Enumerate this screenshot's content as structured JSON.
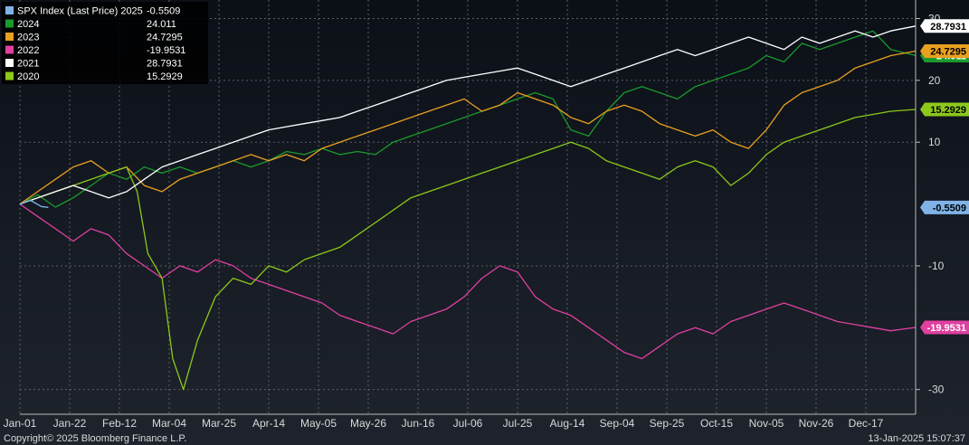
{
  "chart_data": {
    "type": "line",
    "x_tick_labels": [
      "Jan-01",
      "Jan-22",
      "Feb-12",
      "Mar-04",
      "Mar-25",
      "Apr-14",
      "May-05",
      "May-26",
      "Jun-16",
      "Jul-06",
      "Jul-25",
      "Aug-14",
      "Sep-04",
      "Sep-25",
      "Oct-15",
      "Nov-05",
      "Nov-26",
      "Dec-17"
    ],
    "y_ticks": [
      30,
      20,
      10,
      -10,
      -30
    ],
    "y_tick_labels": [
      "30",
      "20",
      "10",
      "-10",
      "-30"
    ],
    "ylim": [
      -34,
      33
    ],
    "xlim": [
      0,
      252
    ],
    "grid": true,
    "legend_position": "top-left",
    "series": [
      {
        "name": "SPX Index (Last Price) 2025",
        "last_value": "-0.5509",
        "color": "#7fb3e8",
        "points": [
          [
            0,
            0
          ],
          [
            3,
            0.6
          ],
          [
            6,
            -0.4
          ],
          [
            8,
            -0.55
          ]
        ]
      },
      {
        "name": "2024",
        "last_value": "24.011",
        "color": "#1a9a2c",
        "points": [
          [
            0,
            0
          ],
          [
            5,
            1.5
          ],
          [
            10,
            -0.5
          ],
          [
            15,
            1
          ],
          [
            20,
            3
          ],
          [
            25,
            5
          ],
          [
            30,
            4
          ],
          [
            35,
            6
          ],
          [
            40,
            5
          ],
          [
            45,
            6
          ],
          [
            50,
            5
          ],
          [
            55,
            6
          ],
          [
            60,
            7
          ],
          [
            65,
            6
          ],
          [
            70,
            7
          ],
          [
            75,
            8.5
          ],
          [
            80,
            8
          ],
          [
            85,
            9
          ],
          [
            90,
            8
          ],
          [
            95,
            8.5
          ],
          [
            100,
            8
          ],
          [
            105,
            10
          ],
          [
            110,
            11
          ],
          [
            115,
            12
          ],
          [
            120,
            13
          ],
          [
            125,
            14
          ],
          [
            130,
            15
          ],
          [
            135,
            16
          ],
          [
            140,
            17
          ],
          [
            145,
            18
          ],
          [
            150,
            17
          ],
          [
            155,
            12
          ],
          [
            160,
            11
          ],
          [
            165,
            15
          ],
          [
            170,
            18
          ],
          [
            175,
            19
          ],
          [
            180,
            18
          ],
          [
            185,
            17
          ],
          [
            190,
            19
          ],
          [
            195,
            20
          ],
          [
            200,
            21
          ],
          [
            205,
            22
          ],
          [
            210,
            24
          ],
          [
            215,
            23
          ],
          [
            220,
            26
          ],
          [
            225,
            25
          ],
          [
            230,
            26
          ],
          [
            235,
            27
          ],
          [
            240,
            28
          ],
          [
            245,
            25
          ],
          [
            252,
            24.011
          ]
        ]
      },
      {
        "name": "2023",
        "last_value": "24.7295",
        "color": "#e8a020",
        "points": [
          [
            0,
            0
          ],
          [
            5,
            2
          ],
          [
            10,
            4
          ],
          [
            15,
            6
          ],
          [
            20,
            7
          ],
          [
            25,
            5
          ],
          [
            30,
            6
          ],
          [
            35,
            3
          ],
          [
            40,
            2
          ],
          [
            45,
            4
          ],
          [
            50,
            5
          ],
          [
            55,
            6
          ],
          [
            60,
            7
          ],
          [
            65,
            8
          ],
          [
            70,
            7
          ],
          [
            75,
            8
          ],
          [
            80,
            7
          ],
          [
            85,
            9
          ],
          [
            90,
            10
          ],
          [
            95,
            11
          ],
          [
            100,
            12
          ],
          [
            105,
            13
          ],
          [
            110,
            14
          ],
          [
            115,
            15
          ],
          [
            120,
            16
          ],
          [
            125,
            17
          ],
          [
            130,
            15
          ],
          [
            135,
            16
          ],
          [
            140,
            18
          ],
          [
            145,
            17
          ],
          [
            150,
            16
          ],
          [
            155,
            14
          ],
          [
            160,
            13
          ],
          [
            165,
            15
          ],
          [
            170,
            16
          ],
          [
            175,
            15
          ],
          [
            180,
            13
          ],
          [
            185,
            12
          ],
          [
            190,
            11
          ],
          [
            195,
            12
          ],
          [
            200,
            10
          ],
          [
            205,
            9
          ],
          [
            210,
            12
          ],
          [
            215,
            16
          ],
          [
            220,
            18
          ],
          [
            225,
            19
          ],
          [
            230,
            20
          ],
          [
            235,
            22
          ],
          [
            240,
            23
          ],
          [
            245,
            24
          ],
          [
            252,
            24.7295
          ]
        ]
      },
      {
        "name": "2022",
        "last_value": "-19.9531",
        "color": "#e040a0",
        "points": [
          [
            0,
            0
          ],
          [
            5,
            -2
          ],
          [
            10,
            -4
          ],
          [
            15,
            -6
          ],
          [
            20,
            -4
          ],
          [
            25,
            -5
          ],
          [
            30,
            -8
          ],
          [
            35,
            -10
          ],
          [
            40,
            -12
          ],
          [
            45,
            -10
          ],
          [
            50,
            -11
          ],
          [
            55,
            -9
          ],
          [
            60,
            -10
          ],
          [
            65,
            -12
          ],
          [
            70,
            -13
          ],
          [
            75,
            -14
          ],
          [
            80,
            -15
          ],
          [
            85,
            -16
          ],
          [
            90,
            -18
          ],
          [
            95,
            -19
          ],
          [
            100,
            -20
          ],
          [
            105,
            -21
          ],
          [
            110,
            -19
          ],
          [
            115,
            -18
          ],
          [
            120,
            -17
          ],
          [
            125,
            -15
          ],
          [
            130,
            -12
          ],
          [
            135,
            -10
          ],
          [
            140,
            -11
          ],
          [
            145,
            -15
          ],
          [
            150,
            -17
          ],
          [
            155,
            -18
          ],
          [
            160,
            -20
          ],
          [
            165,
            -22
          ],
          [
            170,
            -24
          ],
          [
            175,
            -25
          ],
          [
            180,
            -23
          ],
          [
            185,
            -21
          ],
          [
            190,
            -20
          ],
          [
            195,
            -21
          ],
          [
            200,
            -19
          ],
          [
            205,
            -18
          ],
          [
            210,
            -17
          ],
          [
            215,
            -16
          ],
          [
            220,
            -17
          ],
          [
            225,
            -18
          ],
          [
            230,
            -19
          ],
          [
            235,
            -19.5
          ],
          [
            240,
            -20
          ],
          [
            245,
            -20.5
          ],
          [
            252,
            -19.9531
          ]
        ]
      },
      {
        "name": "2021",
        "last_value": "28.7931",
        "color": "#ffffff",
        "points": [
          [
            0,
            0
          ],
          [
            5,
            1
          ],
          [
            10,
            2
          ],
          [
            15,
            3
          ],
          [
            20,
            2
          ],
          [
            25,
            1
          ],
          [
            30,
            2
          ],
          [
            35,
            4
          ],
          [
            40,
            6
          ],
          [
            45,
            7
          ],
          [
            50,
            8
          ],
          [
            55,
            9
          ],
          [
            60,
            10
          ],
          [
            65,
            11
          ],
          [
            70,
            12
          ],
          [
            75,
            12.5
          ],
          [
            80,
            13
          ],
          [
            85,
            13.5
          ],
          [
            90,
            14
          ],
          [
            95,
            15
          ],
          [
            100,
            16
          ],
          [
            105,
            17
          ],
          [
            110,
            18
          ],
          [
            115,
            19
          ],
          [
            120,
            20
          ],
          [
            125,
            20.5
          ],
          [
            130,
            21
          ],
          [
            135,
            21.5
          ],
          [
            140,
            22
          ],
          [
            145,
            21
          ],
          [
            150,
            20
          ],
          [
            155,
            19
          ],
          [
            160,
            20
          ],
          [
            165,
            21
          ],
          [
            170,
            22
          ],
          [
            175,
            23
          ],
          [
            180,
            24
          ],
          [
            185,
            25
          ],
          [
            190,
            24
          ],
          [
            195,
            25
          ],
          [
            200,
            26
          ],
          [
            205,
            27
          ],
          [
            210,
            26
          ],
          [
            215,
            25
          ],
          [
            220,
            27
          ],
          [
            225,
            26
          ],
          [
            230,
            27
          ],
          [
            235,
            28
          ],
          [
            240,
            27
          ],
          [
            245,
            28
          ],
          [
            252,
            28.7931
          ]
        ]
      },
      {
        "name": "2020",
        "last_value": "15.2929",
        "color": "#8cc81a",
        "points": [
          [
            0,
            0
          ],
          [
            5,
            1
          ],
          [
            10,
            2
          ],
          [
            15,
            3
          ],
          [
            20,
            4
          ],
          [
            25,
            5
          ],
          [
            30,
            6
          ],
          [
            33,
            2
          ],
          [
            36,
            -8
          ],
          [
            40,
            -12
          ],
          [
            43,
            -25
          ],
          [
            46,
            -30
          ],
          [
            50,
            -22
          ],
          [
            55,
            -15
          ],
          [
            60,
            -12
          ],
          [
            65,
            -13
          ],
          [
            70,
            -10
          ],
          [
            75,
            -11
          ],
          [
            80,
            -9
          ],
          [
            85,
            -8
          ],
          [
            90,
            -7
          ],
          [
            95,
            -5
          ],
          [
            100,
            -3
          ],
          [
            105,
            -1
          ],
          [
            110,
            1
          ],
          [
            115,
            2
          ],
          [
            120,
            3
          ],
          [
            125,
            4
          ],
          [
            130,
            5
          ],
          [
            135,
            6
          ],
          [
            140,
            7
          ],
          [
            145,
            8
          ],
          [
            150,
            9
          ],
          [
            155,
            10
          ],
          [
            160,
            9
          ],
          [
            165,
            7
          ],
          [
            170,
            6
          ],
          [
            175,
            5
          ],
          [
            180,
            4
          ],
          [
            185,
            6
          ],
          [
            190,
            7
          ],
          [
            195,
            6
          ],
          [
            200,
            3
          ],
          [
            205,
            5
          ],
          [
            210,
            8
          ],
          [
            215,
            10
          ],
          [
            220,
            11
          ],
          [
            225,
            12
          ],
          [
            230,
            13
          ],
          [
            235,
            14
          ],
          [
            240,
            14.5
          ],
          [
            245,
            15
          ],
          [
            252,
            15.2929
          ]
        ]
      }
    ]
  },
  "footer": {
    "copyright": "Copyright© 2025 Bloomberg Finance L.P.",
    "timestamp": "13-Jan-2025 15:07:37"
  }
}
